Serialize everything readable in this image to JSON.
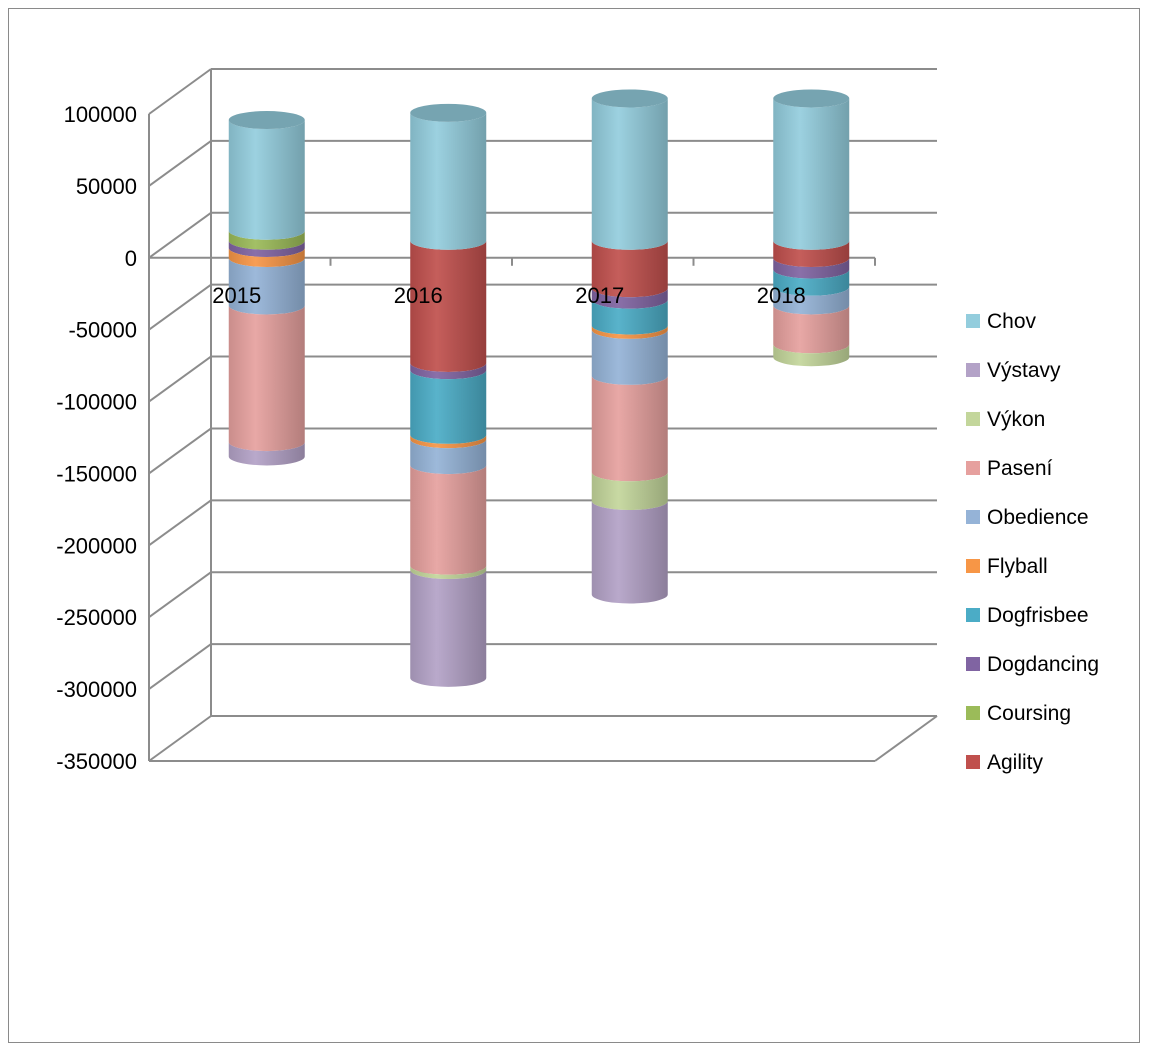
{
  "chart_data": {
    "type": "bar",
    "style": "3d-stacked-cylinder",
    "title": "",
    "xlabel": "",
    "ylabel": "",
    "ylim": [
      -350000,
      100000
    ],
    "yticks": [
      100000,
      50000,
      0,
      -50000,
      -100000,
      -150000,
      -200000,
      -250000,
      -300000,
      -350000
    ],
    "grid": true,
    "legend_position": "right",
    "categories": [
      "2015",
      "2016",
      "2017",
      "2018"
    ],
    "series": [
      {
        "name": "Agility",
        "color": "#C0504D",
        "values": [
          0,
          -85000,
          -33000,
          -12000
        ]
      },
      {
        "name": "Coursing",
        "color": "#9BBB59",
        "values": [
          7000,
          0,
          0,
          0
        ]
      },
      {
        "name": "Dogdancing",
        "color": "#8064A2",
        "values": [
          -5000,
          -5000,
          -8000,
          -8000
        ]
      },
      {
        "name": "Dogfrisbee",
        "color": "#4BACC6",
        "values": [
          0,
          -45000,
          -18000,
          -12000
        ]
      },
      {
        "name": "Flyball",
        "color": "#F79646",
        "values": [
          -7000,
          -3000,
          -3000,
          0
        ]
      },
      {
        "name": "Obedience",
        "color": "#95B3D7",
        "values": [
          -33000,
          -18000,
          -32000,
          -13000
        ]
      },
      {
        "name": "Pasení",
        "color": "#E6A09E",
        "values": [
          -95000,
          -70000,
          -67000,
          -27000
        ]
      },
      {
        "name": "Výkon",
        "color": "#C3D69B",
        "values": [
          0,
          -3000,
          -20000,
          -9000
        ]
      },
      {
        "name": "Výstavy",
        "color": "#B3A2C7",
        "values": [
          -10000,
          -75000,
          -65000,
          0
        ]
      },
      {
        "name": "Chov",
        "color": "#93CDDD",
        "values": [
          77000,
          89000,
          99000,
          99000
        ]
      }
    ],
    "legend_order": [
      "Chov",
      "Výstavy",
      "Výkon",
      "Pasení",
      "Obedience",
      "Flyball",
      "Dogfrisbee",
      "Dogdancing",
      "Coursing",
      "Agility"
    ]
  }
}
